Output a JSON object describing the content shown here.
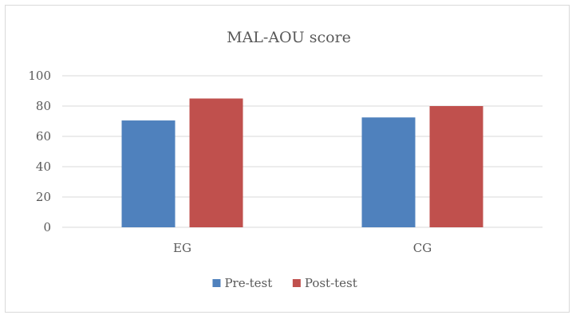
{
  "chart_data": {
    "type": "bar",
    "title": "MAL-AOU score",
    "xlabel": "",
    "ylabel": "",
    "categories": [
      "EG",
      "CG"
    ],
    "series": [
      {
        "name": "Pre-test",
        "values": [
          70.5,
          72.5
        ],
        "color": "#4f81bd"
      },
      {
        "name": "Post-test",
        "values": [
          85,
          80
        ],
        "color": "#c0504d"
      }
    ],
    "ylim": [
      0,
      100
    ],
    "yticks": [
      0,
      20,
      40,
      60,
      80,
      100
    ],
    "grid": true,
    "legend_position": "bottom"
  }
}
